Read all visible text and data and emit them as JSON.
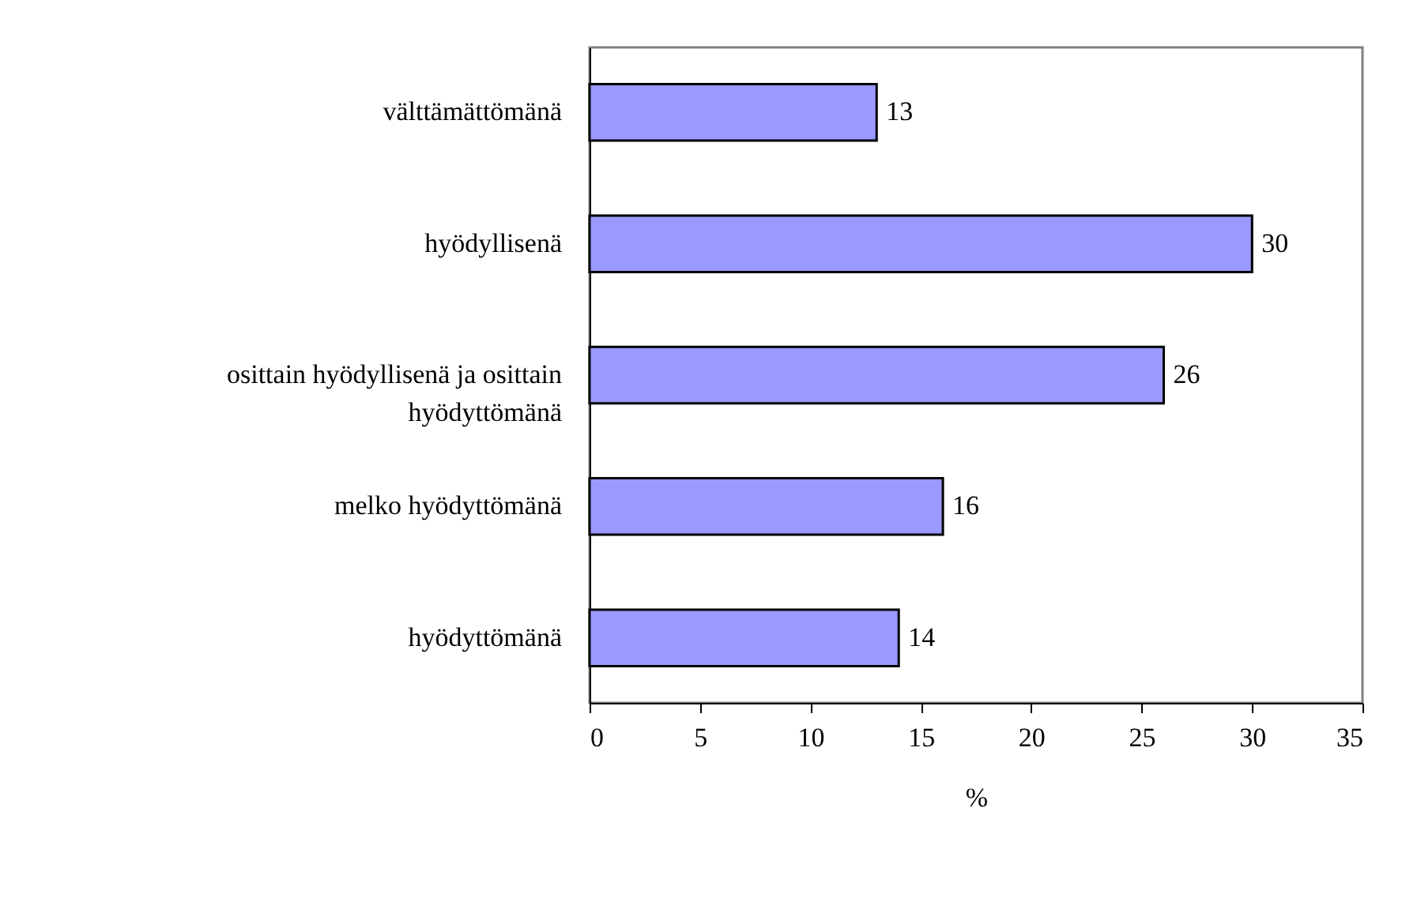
{
  "chart_data": {
    "type": "bar",
    "orientation": "horizontal",
    "xlabel": "%",
    "categories": [
      "välttämättömänä",
      "hyödyllisenä",
      "osittain hyödyllisenä ja osittain hyödyttömänä",
      "melko hyödyttömänä",
      "hyödyttömänä"
    ],
    "values": [
      13,
      30,
      26,
      16,
      14
    ],
    "color": "#9999ff",
    "xlim": [
      0,
      35
    ],
    "xticks": [
      0,
      5,
      10,
      15,
      20,
      25,
      30,
      35
    ],
    "data_labels": true,
    "grid": false
  }
}
